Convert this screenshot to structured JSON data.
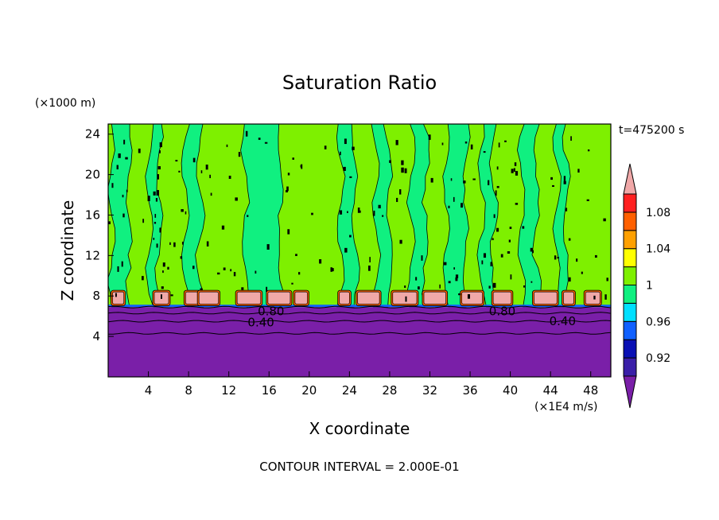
{
  "chart_data": {
    "type": "heatmap",
    "title": "Saturation Ratio",
    "xlabel": "X coordinate",
    "ylabel": "Z coordinate",
    "x_unit": "(×1E4 m/s)",
    "y_unit": "(×1000 m)",
    "time_label": "t=475200 s",
    "footer": "CONTOUR INTERVAL = 2.000E-01",
    "xlim": [
      0,
      50
    ],
    "ylim": [
      0,
      25
    ],
    "x_ticks": [
      4,
      8,
      12,
      16,
      20,
      24,
      28,
      32,
      36,
      40,
      44,
      48
    ],
    "y_ticks": [
      4,
      8,
      12,
      16,
      20,
      24
    ],
    "colorbar": {
      "tick_labels": [
        "0.92",
        "0.96",
        "1",
        "1.04",
        "1.08"
      ],
      "levels": [
        {
          "color": "#7a1fa8"
        },
        {
          "color": "#3a1fa8"
        },
        {
          "color": "#0a10b4"
        },
        {
          "color": "#1060ff"
        },
        {
          "color": "#00e0ff"
        },
        {
          "color": "#10f080"
        },
        {
          "color": "#7ef000"
        },
        {
          "color": "#ffff00"
        },
        {
          "color": "#ffa000"
        },
        {
          "color": "#ff6000"
        },
        {
          "color": "#ff2020"
        },
        {
          "color": "#f0a8a8"
        }
      ]
    },
    "contour_labels": [
      {
        "text": "0.40",
        "x": 15.2,
        "z": 5.4
      },
      {
        "text": "0.40",
        "x": 45.2,
        "z": 5.5
      },
      {
        "text": "0.80",
        "x": 16.2,
        "z": 6.5
      },
      {
        "text": "0.80",
        "x": 39.2,
        "z": 6.5
      }
    ],
    "regions": {
      "dry_layer_top_z": 6.9,
      "peak_layer_z": [
        7.2,
        8.4
      ],
      "peak_columns_x": [
        1.0,
        5.3,
        8.5,
        10.0,
        14.0,
        17.0,
        19.2,
        23.5,
        25.9,
        29.5,
        32.5,
        36.2,
        39.2,
        43.5,
        45.8,
        48.2
      ],
      "moist_bands": [
        {
          "x0": 0.2,
          "x1": 2.0
        },
        {
          "x0": 4.0,
          "x1": 5.0
        },
        {
          "x0": 7.5,
          "x1": 9.0
        },
        {
          "x0": 13.5,
          "x1": 17.0
        },
        {
          "x0": 23.0,
          "x1": 24.5
        },
        {
          "x0": 26.5,
          "x1": 27.8
        },
        {
          "x0": 30.0,
          "x1": 31.5
        },
        {
          "x0": 33.5,
          "x1": 35.5
        },
        {
          "x0": 37.0,
          "x1": 38.2
        },
        {
          "x0": 41.0,
          "x1": 42.5
        },
        {
          "x0": 44.5,
          "x1": 45.5
        }
      ]
    }
  }
}
